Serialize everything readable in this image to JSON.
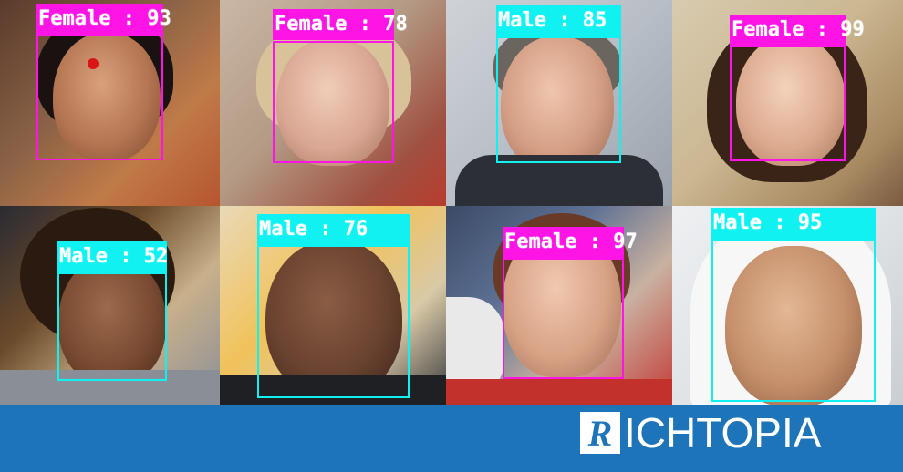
{
  "detections": [
    {
      "gender": "Female",
      "separator": ":",
      "score": "93"
    },
    {
      "gender": "Female",
      "separator": ":",
      "score": "78"
    },
    {
      "gender": "Male",
      "separator": ":",
      "score": "85"
    },
    {
      "gender": "Female",
      "separator": ":",
      "score": "99"
    },
    {
      "gender": "Male",
      "separator": ":",
      "score": "52"
    },
    {
      "gender": "Male",
      "separator": ":",
      "score": "76"
    },
    {
      "gender": "Female",
      "separator": ":",
      "score": "97"
    },
    {
      "gender": "Male",
      "separator": ":",
      "score": "95"
    }
  ],
  "colors": {
    "female": "#ff14e6",
    "male": "#10f2f2",
    "banner": "#1e74b8"
  },
  "banner": {
    "logo_letter": "R",
    "logo_text": "ICHTOPIA"
  }
}
